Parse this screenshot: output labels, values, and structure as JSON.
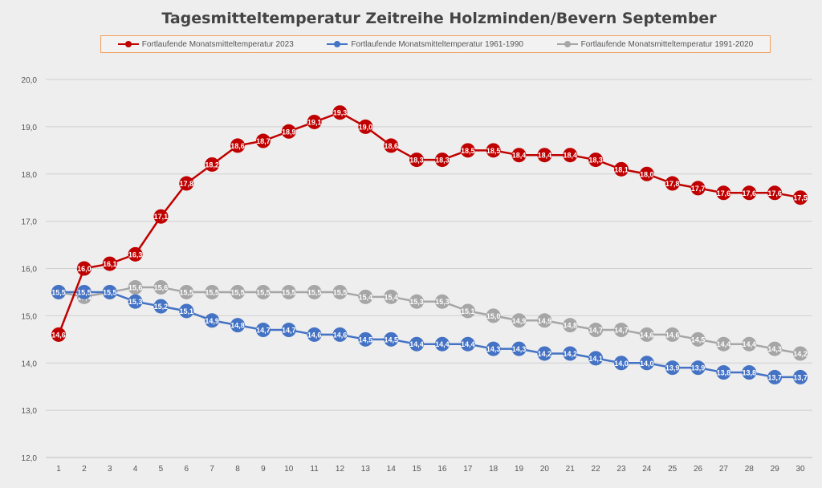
{
  "chart_data": {
    "type": "line",
    "title": "Tagesmitteltemperatur Zeitreihe Holzminden/Bevern September",
    "xlabel": "",
    "ylabel": "",
    "ylim": [
      12.0,
      20.0
    ],
    "yticks": [
      "12,0",
      "13,0",
      "14,0",
      "15,0",
      "16,0",
      "17,0",
      "18,0",
      "19,0",
      "20,0"
    ],
    "categories": [
      "1",
      "2",
      "3",
      "4",
      "5",
      "6",
      "7",
      "8",
      "9",
      "10",
      "11",
      "12",
      "13",
      "14",
      "15",
      "16",
      "17",
      "18",
      "19",
      "20",
      "21",
      "22",
      "23",
      "24",
      "25",
      "26",
      "27",
      "28",
      "29",
      "30"
    ],
    "grid": true,
    "legend": "top",
    "series": [
      {
        "name": "Fortlaufende Monatsmitteltemperatur 2023",
        "color": "#c00000",
        "values": [
          14.6,
          16.0,
          16.1,
          16.3,
          17.1,
          17.8,
          18.2,
          18.6,
          18.7,
          18.9,
          19.1,
          19.3,
          19.0,
          18.6,
          18.3,
          18.3,
          18.5,
          18.5,
          18.4,
          18.4,
          18.4,
          18.3,
          18.1,
          18.0,
          17.8,
          17.7,
          17.6,
          17.6,
          17.6,
          17.5
        ]
      },
      {
        "name": "Fortlaufende Monatsmitteltemperatur 1961-1990",
        "color": "#4472c4",
        "values": [
          15.5,
          15.5,
          15.5,
          15.3,
          15.2,
          15.1,
          14.9,
          14.8,
          14.7,
          14.7,
          14.6,
          14.6,
          14.5,
          14.5,
          14.4,
          14.4,
          14.4,
          14.3,
          14.3,
          14.2,
          14.2,
          14.1,
          14.0,
          14.0,
          13.9,
          13.9,
          13.8,
          13.8,
          13.7,
          13.7
        ]
      },
      {
        "name": "Fortlaufende Monatsmitteltemperatur 1991-2020",
        "color": "#a6a6a6",
        "values": [
          15.5,
          15.4,
          15.5,
          15.6,
          15.6,
          15.5,
          15.5,
          15.5,
          15.5,
          15.5,
          15.5,
          15.5,
          15.4,
          15.4,
          15.3,
          15.3,
          15.1,
          15.0,
          14.9,
          14.9,
          14.8,
          14.7,
          14.7,
          14.6,
          14.6,
          14.5,
          14.4,
          14.4,
          14.3,
          14.2
        ]
      }
    ]
  }
}
